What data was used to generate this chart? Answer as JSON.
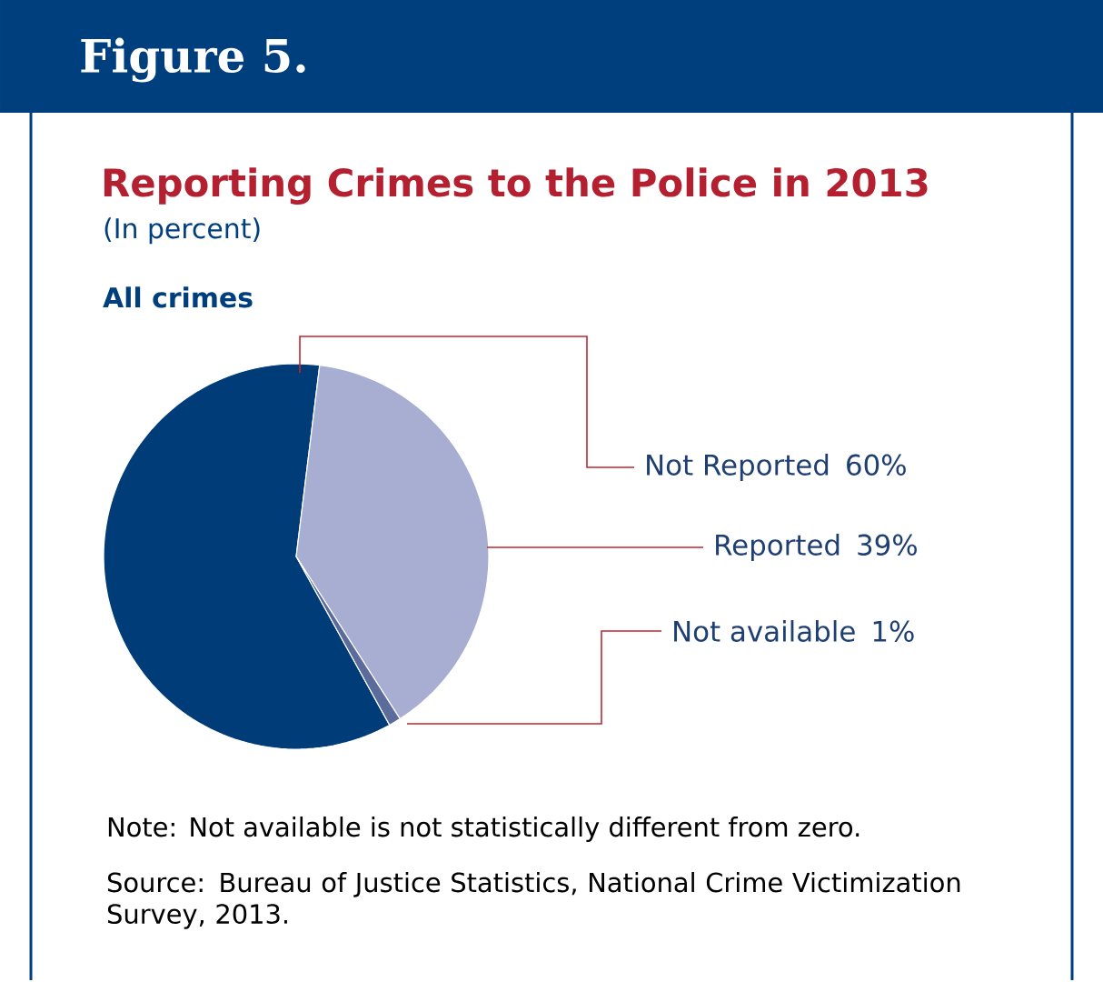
{
  "chart_data": {
    "type": "pie",
    "title": "Reporting Crimes to the Police in 2013",
    "subtitle": "(In percent)",
    "categories": [
      "Not Reported",
      "Reported",
      "Not available"
    ],
    "values": [
      60,
      39,
      1
    ],
    "value_labels": [
      "60%",
      "39%",
      "1%"
    ],
    "colors": [
      "#003c77",
      "#a8aed1",
      "#5b6b9c"
    ],
    "annotations": [
      "Figure 5.",
      "All crimes",
      "Note: Not available is not statistically different from zero.",
      "Source: Bureau of Justice Statistics, National Crime Victimization Survey, 2013."
    ]
  }
}
